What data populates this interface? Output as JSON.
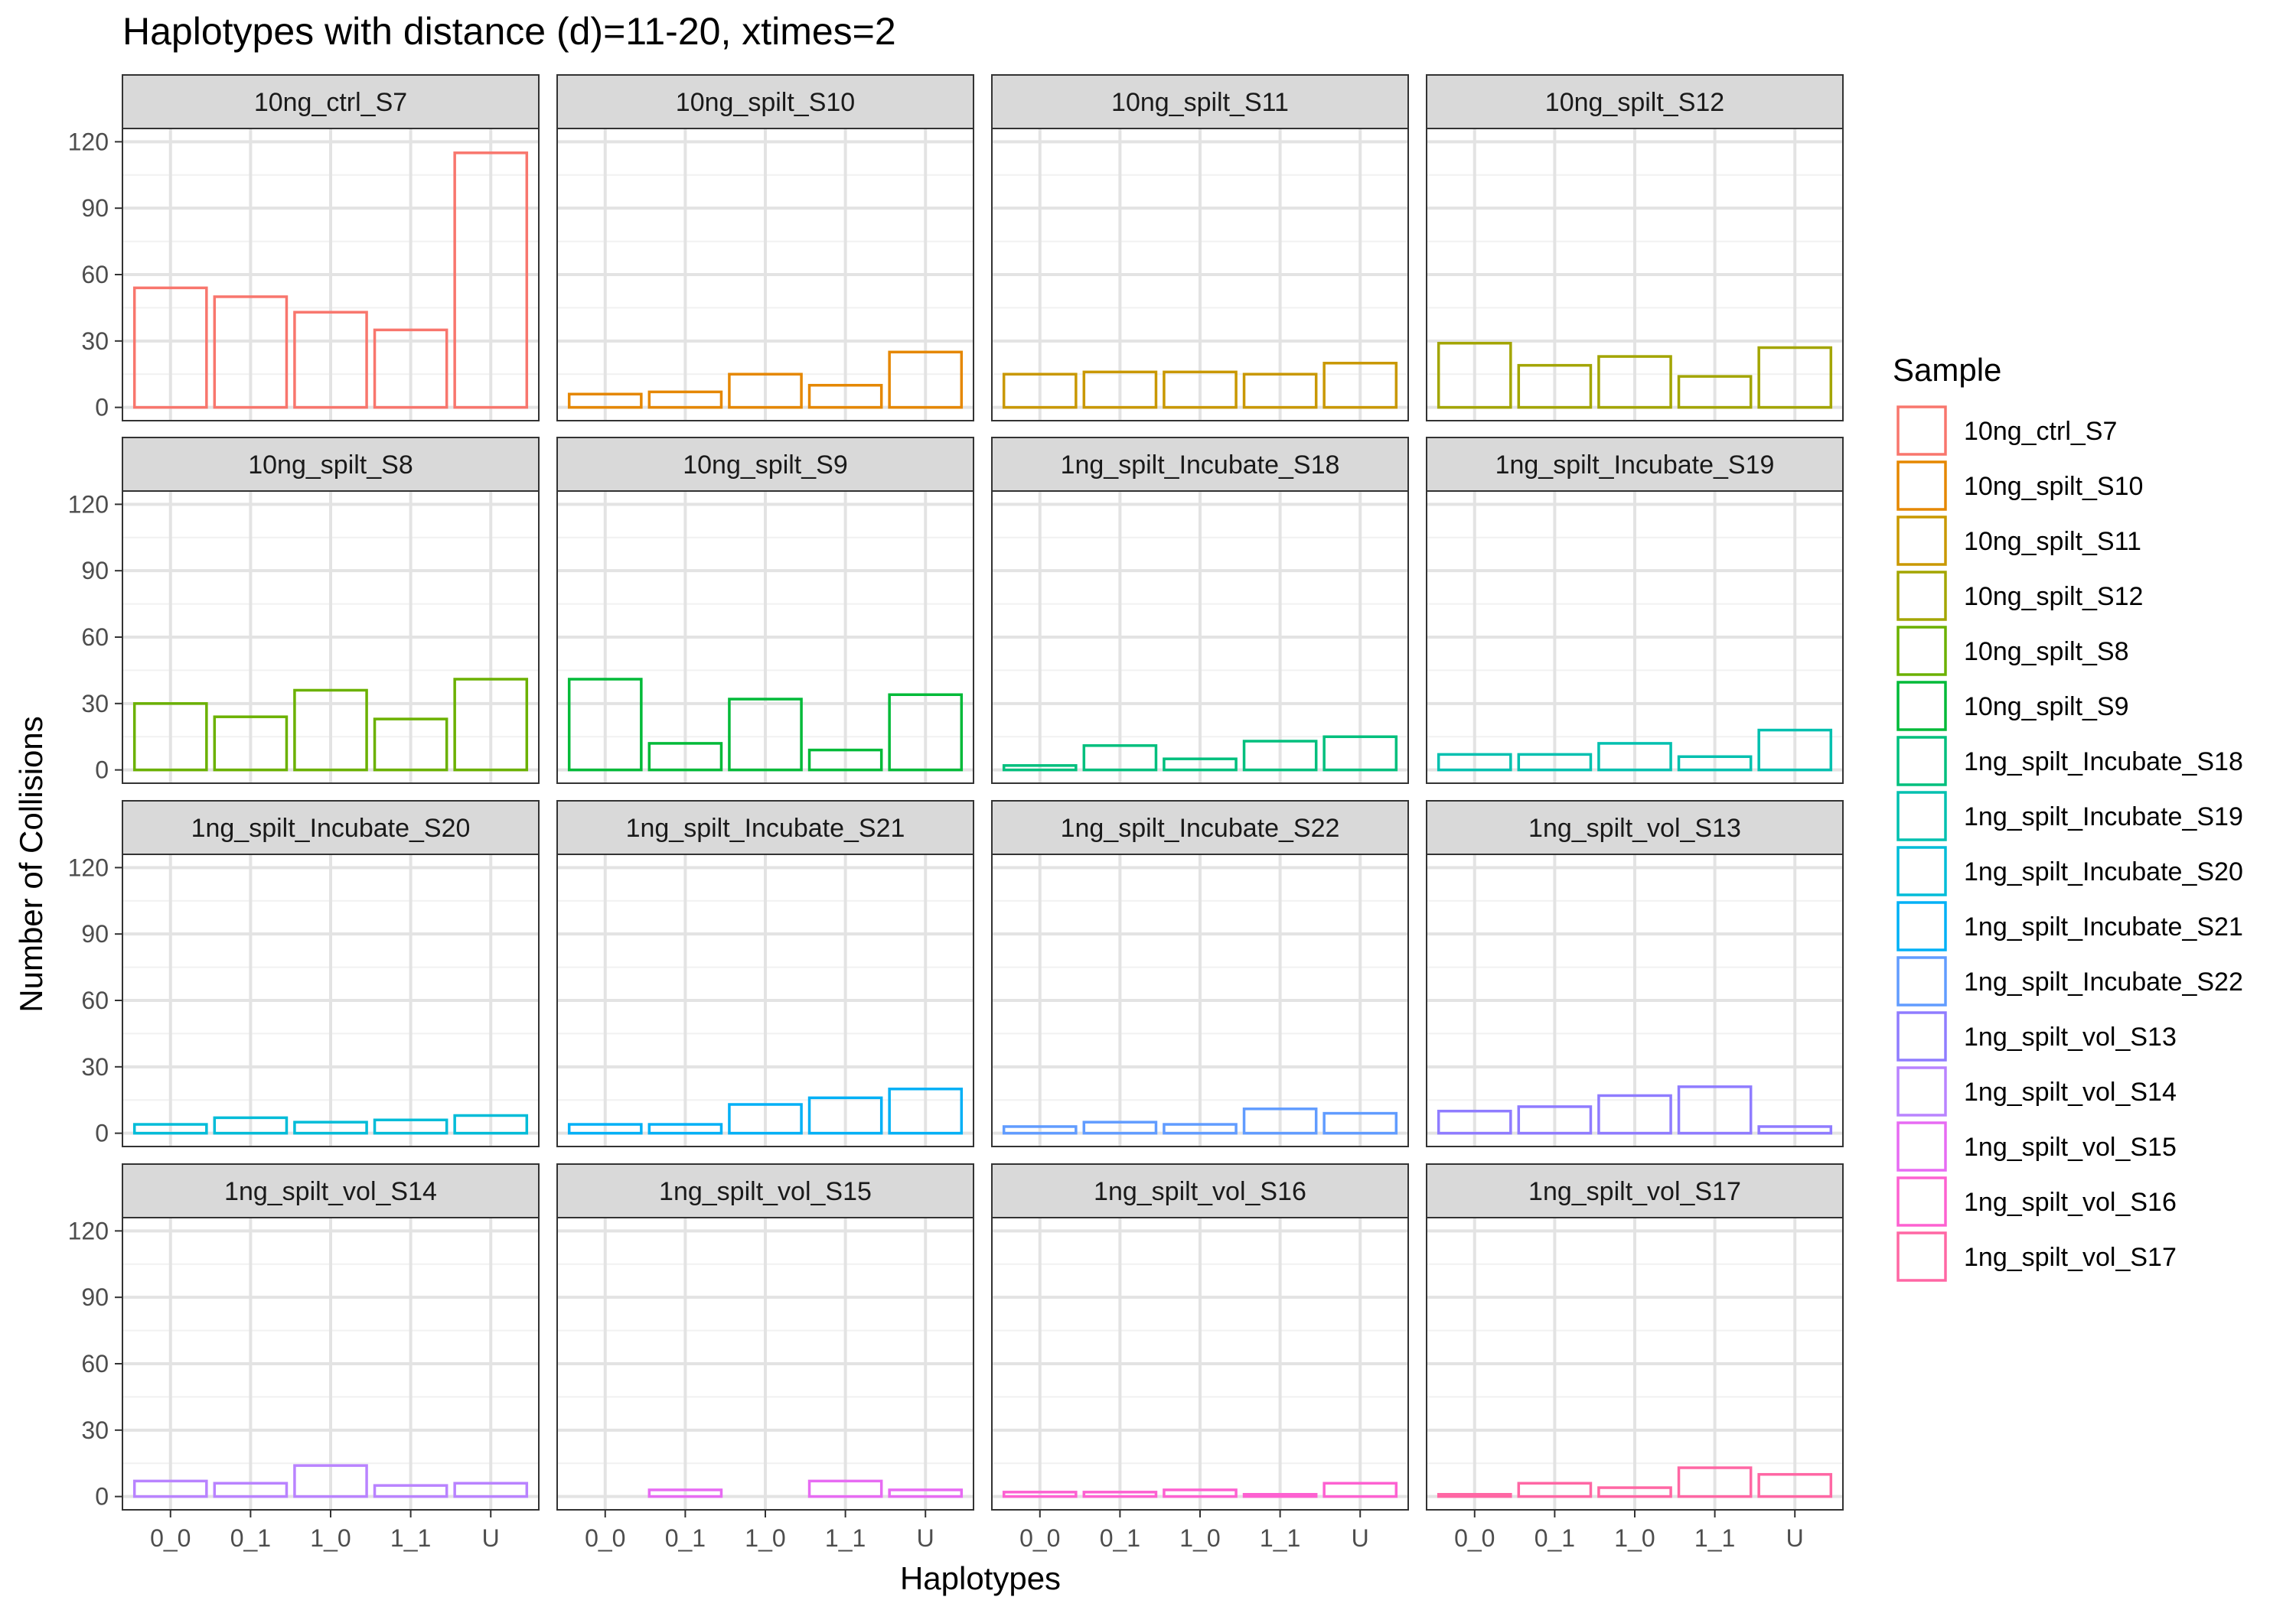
{
  "chart_data": {
    "type": "bar",
    "title": "Haplotypes with distance (d)=11-20, xtimes=2",
    "xlabel": "Haplotypes",
    "ylabel": "Number of Collisions",
    "categories": [
      "0_0",
      "0_1",
      "1_0",
      "1_1",
      "U"
    ],
    "ylim": [
      0,
      120
    ],
    "yticks": [
      0,
      30,
      60,
      90,
      120
    ],
    "grid": true,
    "legend": {
      "title": "Sample",
      "position": "right"
    },
    "series": [
      {
        "name": "10ng_ctrl_S7",
        "color": "#F8766D",
        "values": [
          54,
          50,
          43,
          35,
          115
        ]
      },
      {
        "name": "10ng_spilt_S10",
        "color": "#E58700",
        "values": [
          6,
          7,
          15,
          10,
          25
        ]
      },
      {
        "name": "10ng_spilt_S11",
        "color": "#C99800",
        "values": [
          15,
          16,
          16,
          15,
          20
        ]
      },
      {
        "name": "10ng_spilt_S12",
        "color": "#A3A500",
        "values": [
          29,
          19,
          23,
          14,
          27
        ]
      },
      {
        "name": "10ng_spilt_S8",
        "color": "#6BB100",
        "values": [
          30,
          24,
          36,
          23,
          41
        ]
      },
      {
        "name": "10ng_spilt_S9",
        "color": "#00BA38",
        "values": [
          41,
          12,
          32,
          9,
          34
        ]
      },
      {
        "name": "1ng_spilt_Incubate_S18",
        "color": "#00BF7D",
        "values": [
          2,
          11,
          5,
          13,
          15
        ]
      },
      {
        "name": "1ng_spilt_Incubate_S19",
        "color": "#00C0AF",
        "values": [
          7,
          7,
          12,
          6,
          18
        ]
      },
      {
        "name": "1ng_spilt_Incubate_S20",
        "color": "#00BCD8",
        "values": [
          4,
          7,
          5,
          6,
          8
        ]
      },
      {
        "name": "1ng_spilt_Incubate_S21",
        "color": "#00B0F6",
        "values": [
          4,
          4,
          13,
          16,
          20
        ]
      },
      {
        "name": "1ng_spilt_Incubate_S22",
        "color": "#619CFF",
        "values": [
          3,
          5,
          4,
          11,
          9
        ]
      },
      {
        "name": "1ng_spilt_vol_S13",
        "color": "#8F7CFF",
        "values": [
          10,
          12,
          17,
          21,
          3
        ]
      },
      {
        "name": "1ng_spilt_vol_S14",
        "color": "#B983FF",
        "values": [
          7,
          6,
          14,
          5,
          6
        ]
      },
      {
        "name": "1ng_spilt_vol_S15",
        "color": "#E76BF3",
        "values": [
          0,
          3,
          0,
          7,
          3
        ]
      },
      {
        "name": "1ng_spilt_vol_S16",
        "color": "#FD61D1",
        "values": [
          2,
          2,
          3,
          1,
          6
        ]
      },
      {
        "name": "1ng_spilt_vol_S17",
        "color": "#FF67A4",
        "values": [
          1,
          6,
          4,
          13,
          10
        ]
      }
    ]
  }
}
